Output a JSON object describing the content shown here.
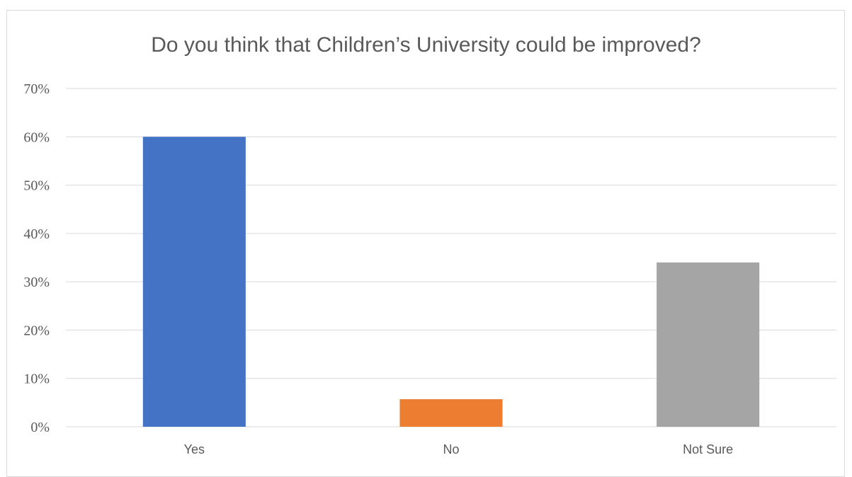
{
  "chart_data": {
    "type": "bar",
    "title": "Do you think that Children’s University could be improved?",
    "xlabel": "",
    "ylabel": "",
    "categories": [
      "Yes",
      "No",
      "Not Sure"
    ],
    "values": [
      0.6,
      0.057,
      0.34
    ],
    "colors": [
      "#4472c4",
      "#ed7d31",
      "#a5a5a5"
    ],
    "ylim": [
      0,
      0.7
    ],
    "yticks": [
      0,
      0.1,
      0.2,
      0.3,
      0.4,
      0.5,
      0.6,
      0.7
    ],
    "ytick_labels": [
      "0%",
      "10%",
      "20%",
      "30%",
      "40%",
      "50%",
      "60%",
      "70%"
    ],
    "grid": true,
    "legend": "none"
  }
}
